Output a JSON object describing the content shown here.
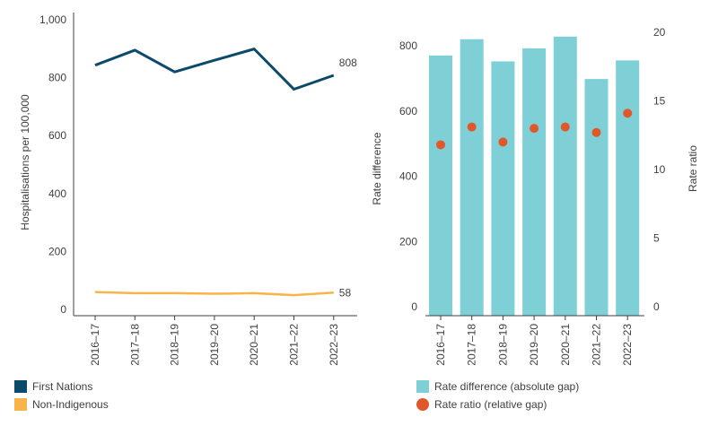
{
  "colors": {
    "first_nations": "#0b4a6b",
    "non_indigenous": "#f7b448",
    "rate_difference": "#7ecfd6",
    "rate_ratio": "#e0582a",
    "axis": "#404040",
    "tick_text": "#404040"
  },
  "chart_data": [
    {
      "type": "line",
      "categories": [
        "2016–17",
        "2017–18",
        "2018–19",
        "2019–20",
        "2020–21",
        "2021–22",
        "2022–23"
      ],
      "series": [
        {
          "name": "First Nations",
          "values": [
            843,
            895,
            820,
            860,
            899,
            760,
            808
          ],
          "end_label": "808"
        },
        {
          "name": "Non-Indigenous",
          "values": [
            60,
            56,
            56,
            54,
            56,
            49,
            58
          ],
          "end_label": "58"
        }
      ],
      "ylabel": "Hospitalisations per 100,000",
      "yticks": [
        "1,000",
        "800",
        "600",
        "400",
        "200",
        "0"
      ],
      "ylim": [
        0,
        1000
      ],
      "legend_position": "bottom-left"
    },
    {
      "type": "bar",
      "categories": [
        "2016–17",
        "2017–18",
        "2018–19",
        "2019–20",
        "2020–21",
        "2021–22",
        "2022–23"
      ],
      "series": [
        {
          "name": "Rate difference (absolute gap)",
          "axis": "left",
          "values": [
            770,
            820,
            752,
            792,
            828,
            698,
            755
          ]
        },
        {
          "name": "Rate ratio (relative gap)",
          "axis": "right",
          "values": [
            11.8,
            13.1,
            12.0,
            13.0,
            13.1,
            12.7,
            14.1
          ]
        }
      ],
      "ylabel": "Rate difference",
      "y2label": "Rate ratio",
      "yticks": [
        "800",
        "600",
        "400",
        "200",
        "0"
      ],
      "y2ticks": [
        "20",
        "15",
        "10",
        "5",
        "0"
      ],
      "ylim": [
        0,
        900
      ],
      "y2lim": [
        0,
        20
      ],
      "legend_position": "bottom-left"
    }
  ]
}
